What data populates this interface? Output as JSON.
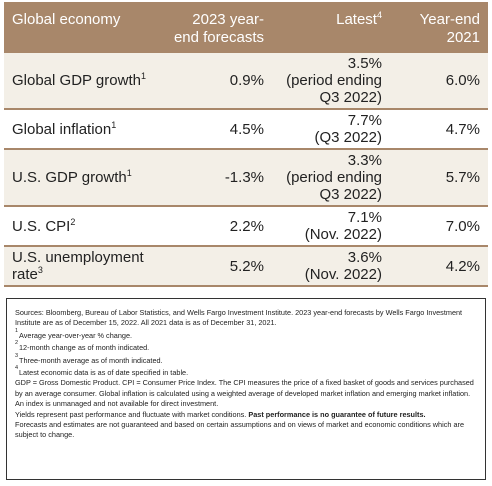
{
  "table": {
    "headers": [
      "Global economy",
      "2023 year-end forecasts",
      "Latest",
      "Year-end 2021"
    ],
    "latest_header_sup": "4",
    "rows": [
      {
        "label": "Global GDP growth",
        "sup": "1",
        "forecast": "0.9%",
        "latest": "3.5%\n(period ending\nQ3 2022)",
        "ye2021": "6.0%"
      },
      {
        "label": "Global inflation",
        "sup": "1",
        "forecast": "4.5%",
        "latest": "7.7%\n(Q3 2022)",
        "ye2021": "4.7%"
      },
      {
        "label": "U.S. GDP growth",
        "sup": "1",
        "forecast": "-1.3%",
        "latest": "3.3%\n(period ending\nQ3 2022)",
        "ye2021": "5.7%"
      },
      {
        "label": "U.S. CPI",
        "sup": "2",
        "forecast": "2.2%",
        "latest": "7.1%\n(Nov. 2022)",
        "ye2021": "7.0%"
      },
      {
        "label": "U.S. unemployment rate",
        "sup": "3",
        "forecast": "5.2%",
        "latest": "3.6%\n(Nov. 2022)",
        "ye2021": "4.2%"
      }
    ]
  },
  "notes": {
    "sources": "Sources: Bloomberg, Bureau of Labor Statistics, and Wells Fargo Investment Institute. 2023 year-end forecasts by Wells Fargo Investment Institute are as of December 15, 2022. All 2021 data is as of December 31, 2021.",
    "footnotes": [
      {
        "num": "1",
        "text": "Average year-over-year % change."
      },
      {
        "num": "2",
        "text": "12-month change as of month indicated."
      },
      {
        "num": "3",
        "text": "Three-month average as of month indicated."
      },
      {
        "num": "4",
        "text": "Latest economic data is as of date specified in table."
      }
    ],
    "definitions": "GDP = Gross Domestic Product. CPI = Consumer Price Index. The CPI measures the price of a fixed basket of goods and services purchased by an average consumer. Global inflation is calculated using a weighted average of developed market inflation and emerging market inflation. An index is unmanaged and not available for direct investment.",
    "yields": "Yields represent past performance and fluctuate with market conditions.",
    "past_performance": "Past performance is no guarantee of future results.",
    "forecasts": "Forecasts and estimates are not guaranteed and based on certain assumptions and on views of market and economic conditions which are subject to change."
  }
}
